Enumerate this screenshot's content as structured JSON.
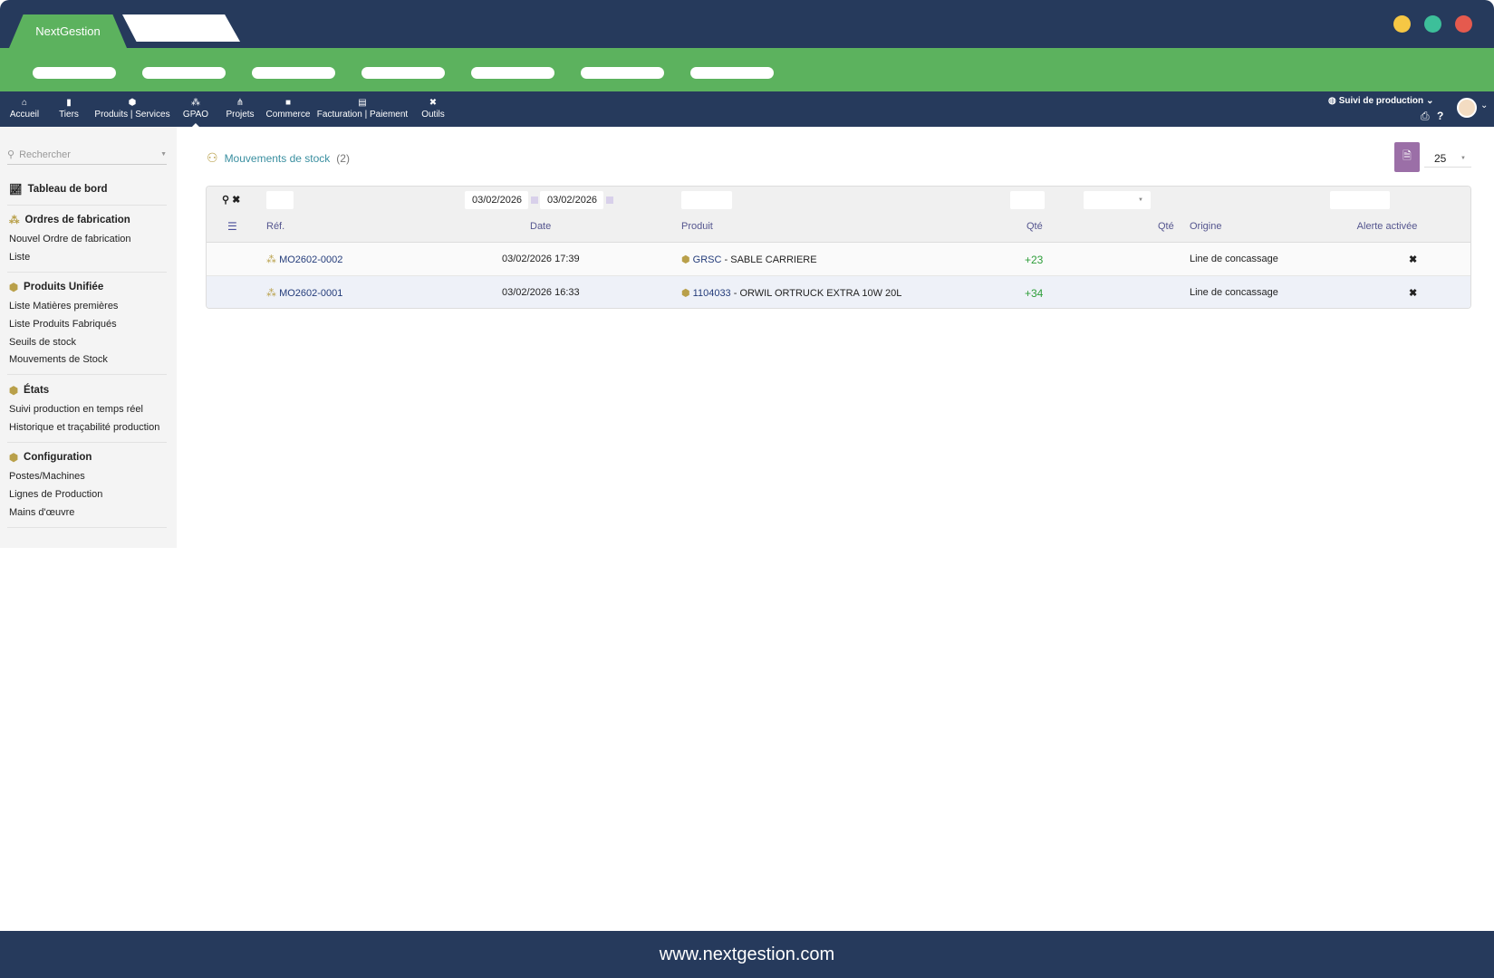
{
  "window": {
    "app_tab": "NextGestion",
    "dot_colors": [
      "#f6c744",
      "#3dbf9a",
      "#e55a4e"
    ],
    "url": "www.nextgestion.com"
  },
  "nav": {
    "items": [
      {
        "label": "Accueil",
        "icon": "home-icon"
      },
      {
        "label": "Tiers",
        "icon": "building-icon"
      },
      {
        "label": "Produits | Services",
        "icon": "cube-icon"
      },
      {
        "label": "GPAO",
        "icon": "cubes-icon",
        "active": true
      },
      {
        "label": "Projets",
        "icon": "sitemap-icon"
      },
      {
        "label": "Commerce",
        "icon": "briefcase-icon"
      },
      {
        "label": "Facturation | Paiement",
        "icon": "invoice-icon"
      },
      {
        "label": "Outils",
        "icon": "tools-icon"
      }
    ],
    "context": "Suivi de production"
  },
  "sidebar": {
    "search_placeholder": "Rechercher",
    "dashboard": "Tableau de bord",
    "sections": [
      {
        "title": "Ordres de fabrication",
        "items": [
          "Nouvel Ordre de fabrication",
          "Liste"
        ]
      },
      {
        "title": "Produits Unifiée",
        "items": [
          "Liste Matières premières",
          "Liste Produits Fabriqués",
          "Seuils de stock",
          "Mouvements de Stock"
        ]
      },
      {
        "title": "États",
        "items": [
          "Suivi production en temps réel",
          "Historique et traçabilité production"
        ]
      },
      {
        "title": "Configuration",
        "items": [
          "Postes/Machines",
          "Lignes de Production",
          "Mains d'œuvre"
        ]
      }
    ]
  },
  "main": {
    "title": "Mouvements de stock",
    "count": "(2)",
    "limit": "25",
    "filters": {
      "date_from": "03/02/2026",
      "date_to": "03/02/2026"
    },
    "columns": [
      "Réf.",
      "Date",
      "Produit",
      "Qté",
      "Qté",
      "Origine",
      "Alerte activée"
    ],
    "rows": [
      {
        "ref": "MO2602-0002",
        "date": "03/02/2026 17:39",
        "product_code": "GRSC",
        "product_name": " - SABLE CARRIERE",
        "qty": "+23",
        "origin": "Line de concassage",
        "alert": "✖"
      },
      {
        "ref": "MO2602-0001",
        "date": "03/02/2026 16:33",
        "product_code": "1104033",
        "product_name": " - ORWIL ORTRUCK EXTRA 10W 20L",
        "qty": "+34",
        "origin": "Line de concassage",
        "alert": "✖"
      }
    ],
    "colors": {
      "positive_qty": "#2e9e3a",
      "accent": "#9b6fa7"
    }
  }
}
